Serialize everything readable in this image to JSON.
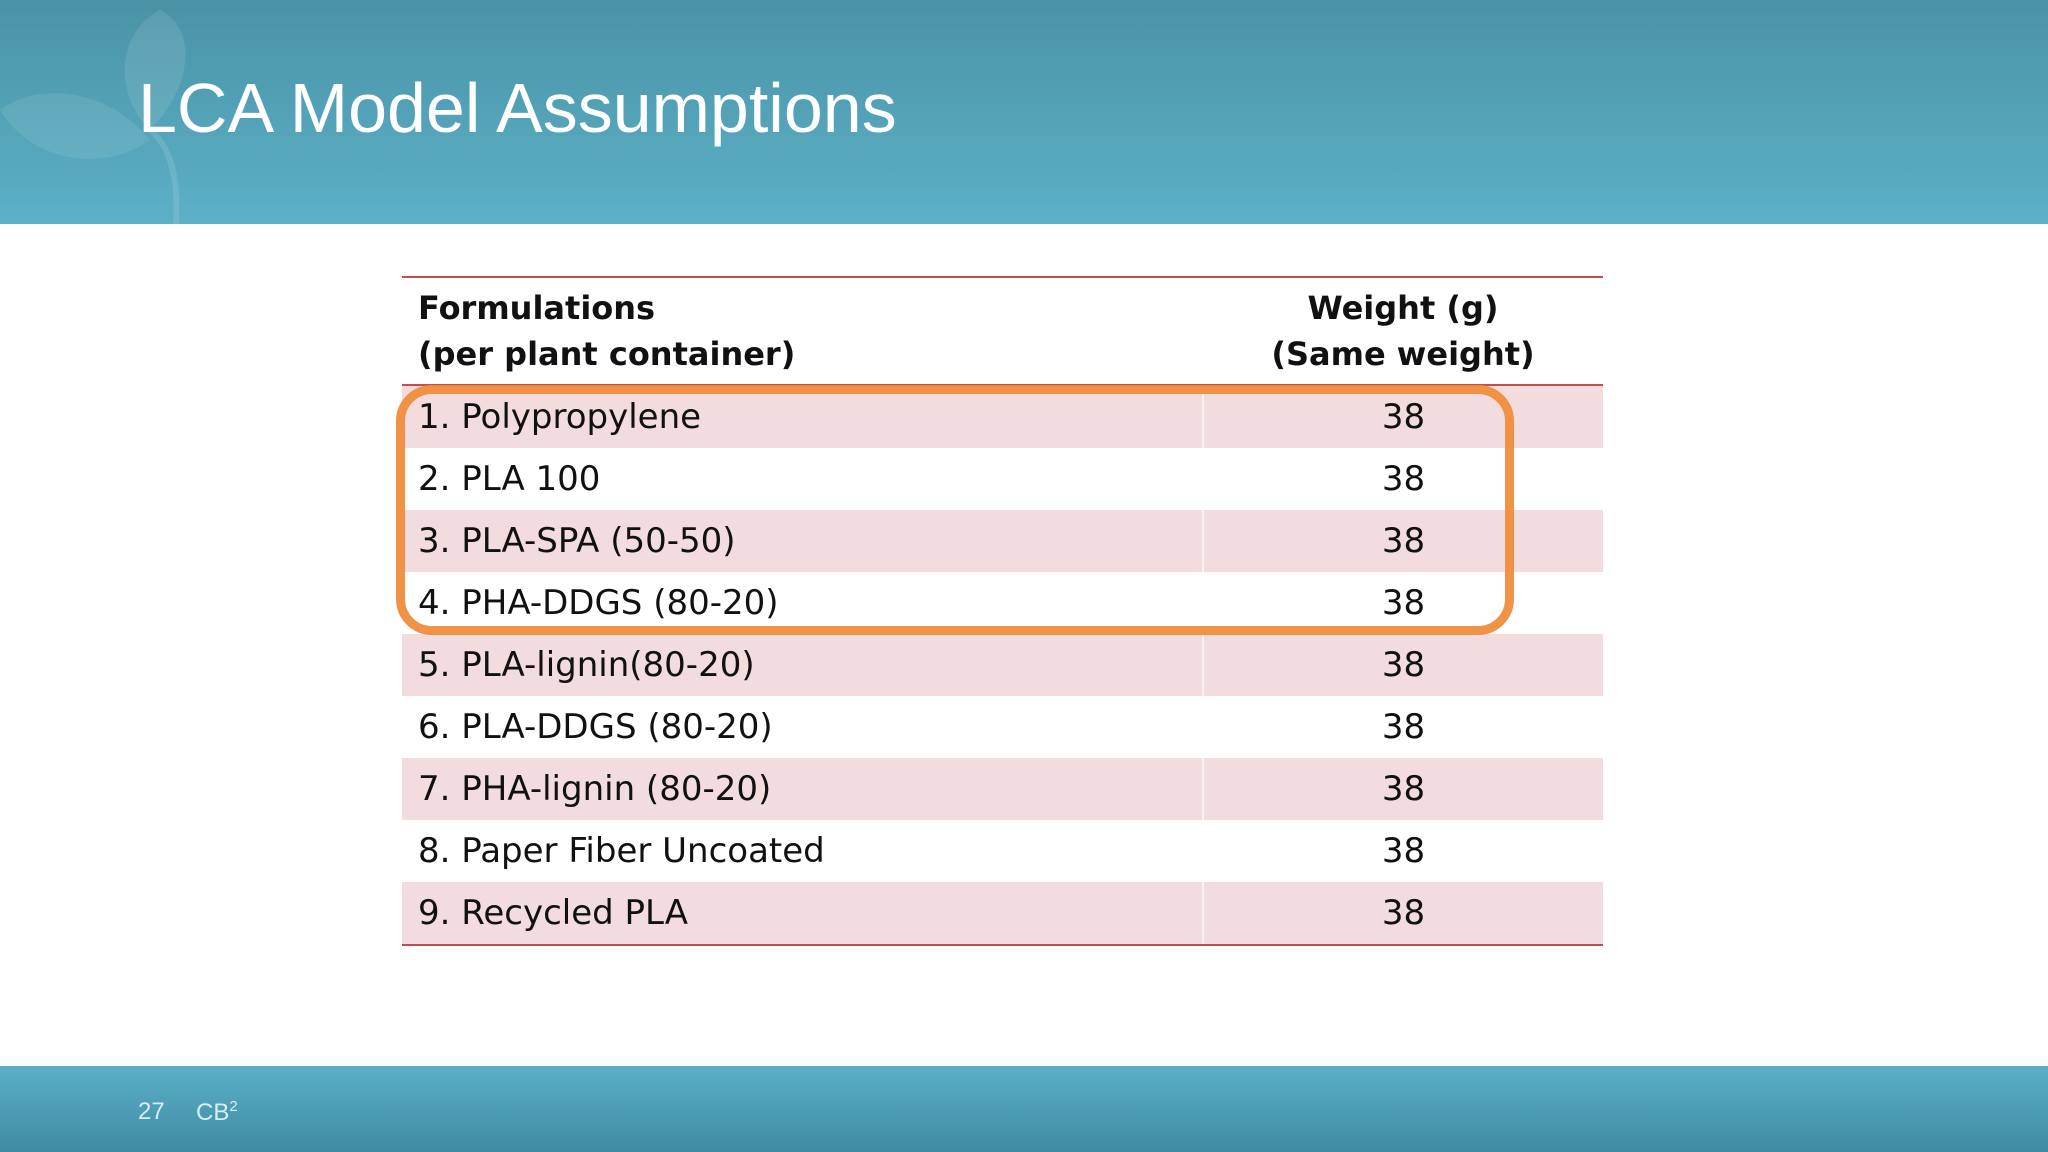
{
  "slide": {
    "title": "LCA Model Assumptions"
  },
  "table": {
    "headers": {
      "col1_line1": "Formulations",
      "col1_line2": "(per plant container)",
      "col2_line1": "Weight (g)",
      "col2_line2": "(Same weight)"
    },
    "rows": [
      {
        "formulation": "1. Polypropylene",
        "weight": "38"
      },
      {
        "formulation": "2. PLA 100",
        "weight": "38"
      },
      {
        "formulation": "3. PLA-SPA (50-50)",
        "weight": "38"
      },
      {
        "formulation": "4. PHA-DDGS (80-20)",
        "weight": "38"
      },
      {
        "formulation": "5. PLA-lignin(80-20)",
        "weight": "38"
      },
      {
        "formulation": "6. PLA-DDGS (80-20)",
        "weight": "38"
      },
      {
        "formulation": "7. PHA-lignin (80-20)",
        "weight": "38"
      },
      {
        "formulation": "8. Paper Fiber Uncoated",
        "weight": "38"
      },
      {
        "formulation": "9. Recycled PLA",
        "weight": "38"
      }
    ]
  },
  "footer": {
    "page_number": "27",
    "brand": "CB",
    "brand_sup": "2"
  },
  "colors": {
    "header_teal": "#5cb0c8",
    "rule_red": "#c0504d",
    "row_band": "#f2dcdd",
    "highlight_orange": "#f08a36"
  }
}
